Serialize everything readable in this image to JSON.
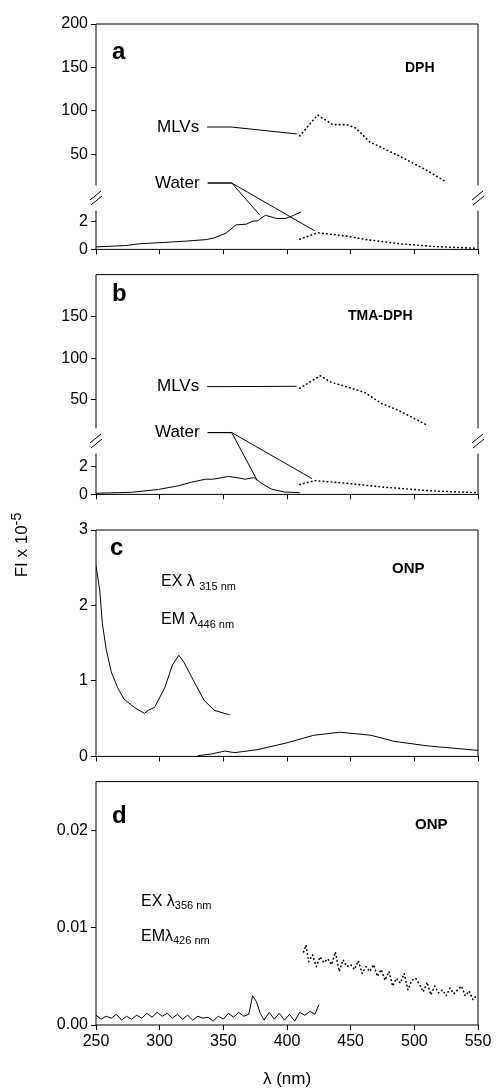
{
  "chart_data": [
    {
      "type": "line",
      "xlim": [
        250,
        550
      ],
      "ylim": [
        14,
        200
      ],
      "yticks": [
        50,
        100,
        150,
        200
      ],
      "tick_labels": "y",
      "annotations": [
        "a",
        "DPH",
        {
          "text": "MLVs",
          "x": 410,
          "y": 71
        },
        "Water"
      ],
      "series": [
        {
          "color": "#000000",
          "line_style": "dotted",
          "x": [
            410,
            424,
            436,
            447,
            454,
            465,
            488,
            509,
            525
          ],
          "values": [
            71,
            95,
            84,
            84,
            80,
            64,
            48,
            32,
            18
          ]
        }
      ]
    },
    {
      "type": "line",
      "xlim": [
        250,
        550
      ],
      "xticks": [
        250,
        300,
        350,
        400,
        450,
        500,
        550
      ],
      "ylim": [
        0,
        2.8
      ],
      "yticks": [
        0,
        2
      ],
      "tick_labels": "y",
      "series": [
        {
          "color": "#000000",
          "line_style": "solid",
          "x": [
            250,
            274,
            284,
            305,
            321,
            337,
            343,
            352,
            360,
            368,
            373,
            377,
            383,
            392,
            399,
            405,
            411
          ],
          "values": [
            0.18,
            0.28,
            0.41,
            0.51,
            0.6,
            0.71,
            0.84,
            1.17,
            1.77,
            1.82,
            2.03,
            2.07,
            2.46,
            2.23,
            2.23,
            2.45,
            2.7
          ]
        },
        {
          "color": "#000000",
          "line_style": "dotted",
          "x": [
            410,
            424,
            447,
            462,
            488,
            515,
            549
          ],
          "values": [
            0.74,
            1.2,
            0.96,
            0.71,
            0.41,
            0.21,
            0.08
          ]
        }
      ]
    },
    {
      "type": "line",
      "xlim": [
        250,
        550
      ],
      "ylim": [
        16,
        200
      ],
      "yticks": [
        50,
        100,
        150
      ],
      "tick_labels": "y",
      "annotations": [
        "b",
        "TMA-DPH",
        {
          "text": "MLVs",
          "x": 410,
          "y": 64
        },
        "Water"
      ],
      "series": [
        {
          "color": "#000000",
          "line_style": "dotted",
          "x": [
            410,
            426,
            435,
            451,
            461,
            474,
            487,
            510
          ],
          "values": [
            64,
            79,
            71,
            64,
            59,
            46,
            38,
            20
          ]
        }
      ]
    },
    {
      "type": "line",
      "xlim": [
        250,
        550
      ],
      "xticks": [
        250,
        300,
        350,
        400,
        450,
        500,
        550
      ],
      "ylim": [
        0,
        2.9
      ],
      "yticks": [
        0,
        2
      ],
      "tick_labels": "y",
      "series": [
        {
          "color": "#000000",
          "line_style": "solid",
          "x": [
            250,
            278,
            299,
            315,
            325,
            336,
            342,
            354,
            360,
            367,
            374,
            380,
            388,
            398,
            410
          ],
          "values": [
            0.08,
            0.15,
            0.35,
            0.62,
            0.87,
            1.08,
            1.08,
            1.28,
            1.2,
            1.08,
            1.2,
            0.78,
            0.37,
            0.17,
            0.12
          ]
        },
        {
          "color": "#000000",
          "line_style": "dotted",
          "x": [
            410,
            422,
            448,
            474,
            513,
            549
          ],
          "values": [
            0.7,
            0.98,
            0.78,
            0.53,
            0.25,
            0.12
          ]
        }
      ]
    },
    {
      "type": "line",
      "xlim": [
        250,
        550
      ],
      "xticks": [
        250,
        300,
        350,
        400,
        450,
        500,
        550
      ],
      "ylim": [
        0,
        3
      ],
      "yticks": [
        0,
        1,
        2,
        3
      ],
      "tick_labels": "y",
      "ylabel": "FI x 10$^{-5}$",
      "annotations": [
        "c",
        "ONP",
        "EX λ $_{315 nm}$",
        "EM λ$_{446 nm}$"
      ],
      "series": [
        {
          "color": "#000000",
          "line_style": "solid",
          "x": [
            250,
            253,
            255,
            258,
            262,
            267,
            272,
            280,
            288,
            291,
            296,
            304,
            310,
            315,
            319,
            327,
            335,
            343,
            355
          ],
          "values": [
            2.53,
            2.19,
            1.76,
            1.42,
            1.12,
            0.91,
            0.76,
            0.65,
            0.57,
            0.61,
            0.65,
            0.91,
            1.21,
            1.34,
            1.25,
            0.99,
            0.74,
            0.61,
            0.55
          ]
        },
        {
          "color": "#000000",
          "line_style": "solid",
          "x": [
            330,
            340,
            351,
            359,
            377,
            400,
            421,
            442,
            466,
            484,
            510,
            550
          ],
          "values": [
            0.01,
            0.03,
            0.07,
            0.05,
            0.09,
            0.18,
            0.28,
            0.32,
            0.28,
            0.2,
            0.14,
            0.08
          ]
        }
      ]
    },
    {
      "type": "line",
      "xlim": [
        250,
        550
      ],
      "xticks": [
        250,
        300,
        350,
        400,
        450,
        500,
        550
      ],
      "ylim": [
        0,
        0.025
      ],
      "yticks": [
        {
          "value": 0,
          "label": "0.00"
        },
        0.01,
        0.02
      ],
      "xlabel": "λ (nm)",
      "annotations": [
        "d",
        "ONP",
        "EX λ$_{356 nm}$",
        "EMλ$_{426 nm}$"
      ],
      "series": [
        {
          "color": "#000000",
          "line_style": "solid",
          "x": [
            250,
            254,
            258,
            262,
            266,
            270,
            274,
            278,
            282,
            286,
            290,
            294,
            298,
            302,
            306,
            310,
            314,
            318,
            322,
            326,
            330,
            334,
            338,
            342,
            346,
            350,
            354,
            358,
            362,
            366,
            370,
            373,
            376,
            379,
            382,
            386,
            390,
            394,
            398,
            402,
            406,
            410,
            414,
            418,
            422,
            425
          ],
          "values": [
            0.001,
            0.0006,
            0.0009,
            0.0007,
            0.0011,
            0.0005,
            0.0009,
            0.0006,
            0.001,
            0.0007,
            0.0012,
            0.0008,
            0.0013,
            0.0009,
            0.0012,
            0.0007,
            0.0011,
            0.0006,
            0.001,
            0.0005,
            0.0009,
            0.0007,
            0.0008,
            0.0004,
            0.0009,
            0.0006,
            0.0012,
            0.0008,
            0.0013,
            0.0009,
            0.0011,
            0.003,
            0.0024,
            0.0012,
            0.0005,
            0.0013,
            0.0006,
            0.0012,
            0.0005,
            0.0011,
            0.0004,
            0.0013,
            0.001,
            0.0014,
            0.0011,
            0.0021
          ]
        },
        {
          "color": "#000000",
          "line_style": "dotted",
          "x": [
            413,
            415,
            417,
            420,
            423,
            426,
            429,
            432,
            435,
            438,
            441,
            444,
            447,
            450,
            453,
            456,
            459,
            462,
            465,
            468,
            471,
            474,
            477,
            480,
            483,
            486,
            489,
            492,
            495,
            498,
            501,
            504,
            507,
            510,
            513,
            516,
            519,
            522,
            525,
            528,
            531,
            534,
            537,
            540,
            543,
            546,
            548
          ],
          "values": [
            0.0075,
            0.0082,
            0.0065,
            0.0072,
            0.006,
            0.007,
            0.0064,
            0.0068,
            0.0062,
            0.0075,
            0.0055,
            0.0067,
            0.006,
            0.0062,
            0.0057,
            0.0066,
            0.0053,
            0.006,
            0.0055,
            0.0062,
            0.005,
            0.0057,
            0.0046,
            0.0055,
            0.004,
            0.0048,
            0.0043,
            0.0053,
            0.0036,
            0.0046,
            0.0048,
            0.0042,
            0.0034,
            0.0044,
            0.0031,
            0.004,
            0.0033,
            0.0036,
            0.003,
            0.0038,
            0.0032,
            0.0036,
            0.004,
            0.003,
            0.0035,
            0.0026,
            0.0029
          ]
        }
      ]
    }
  ]
}
